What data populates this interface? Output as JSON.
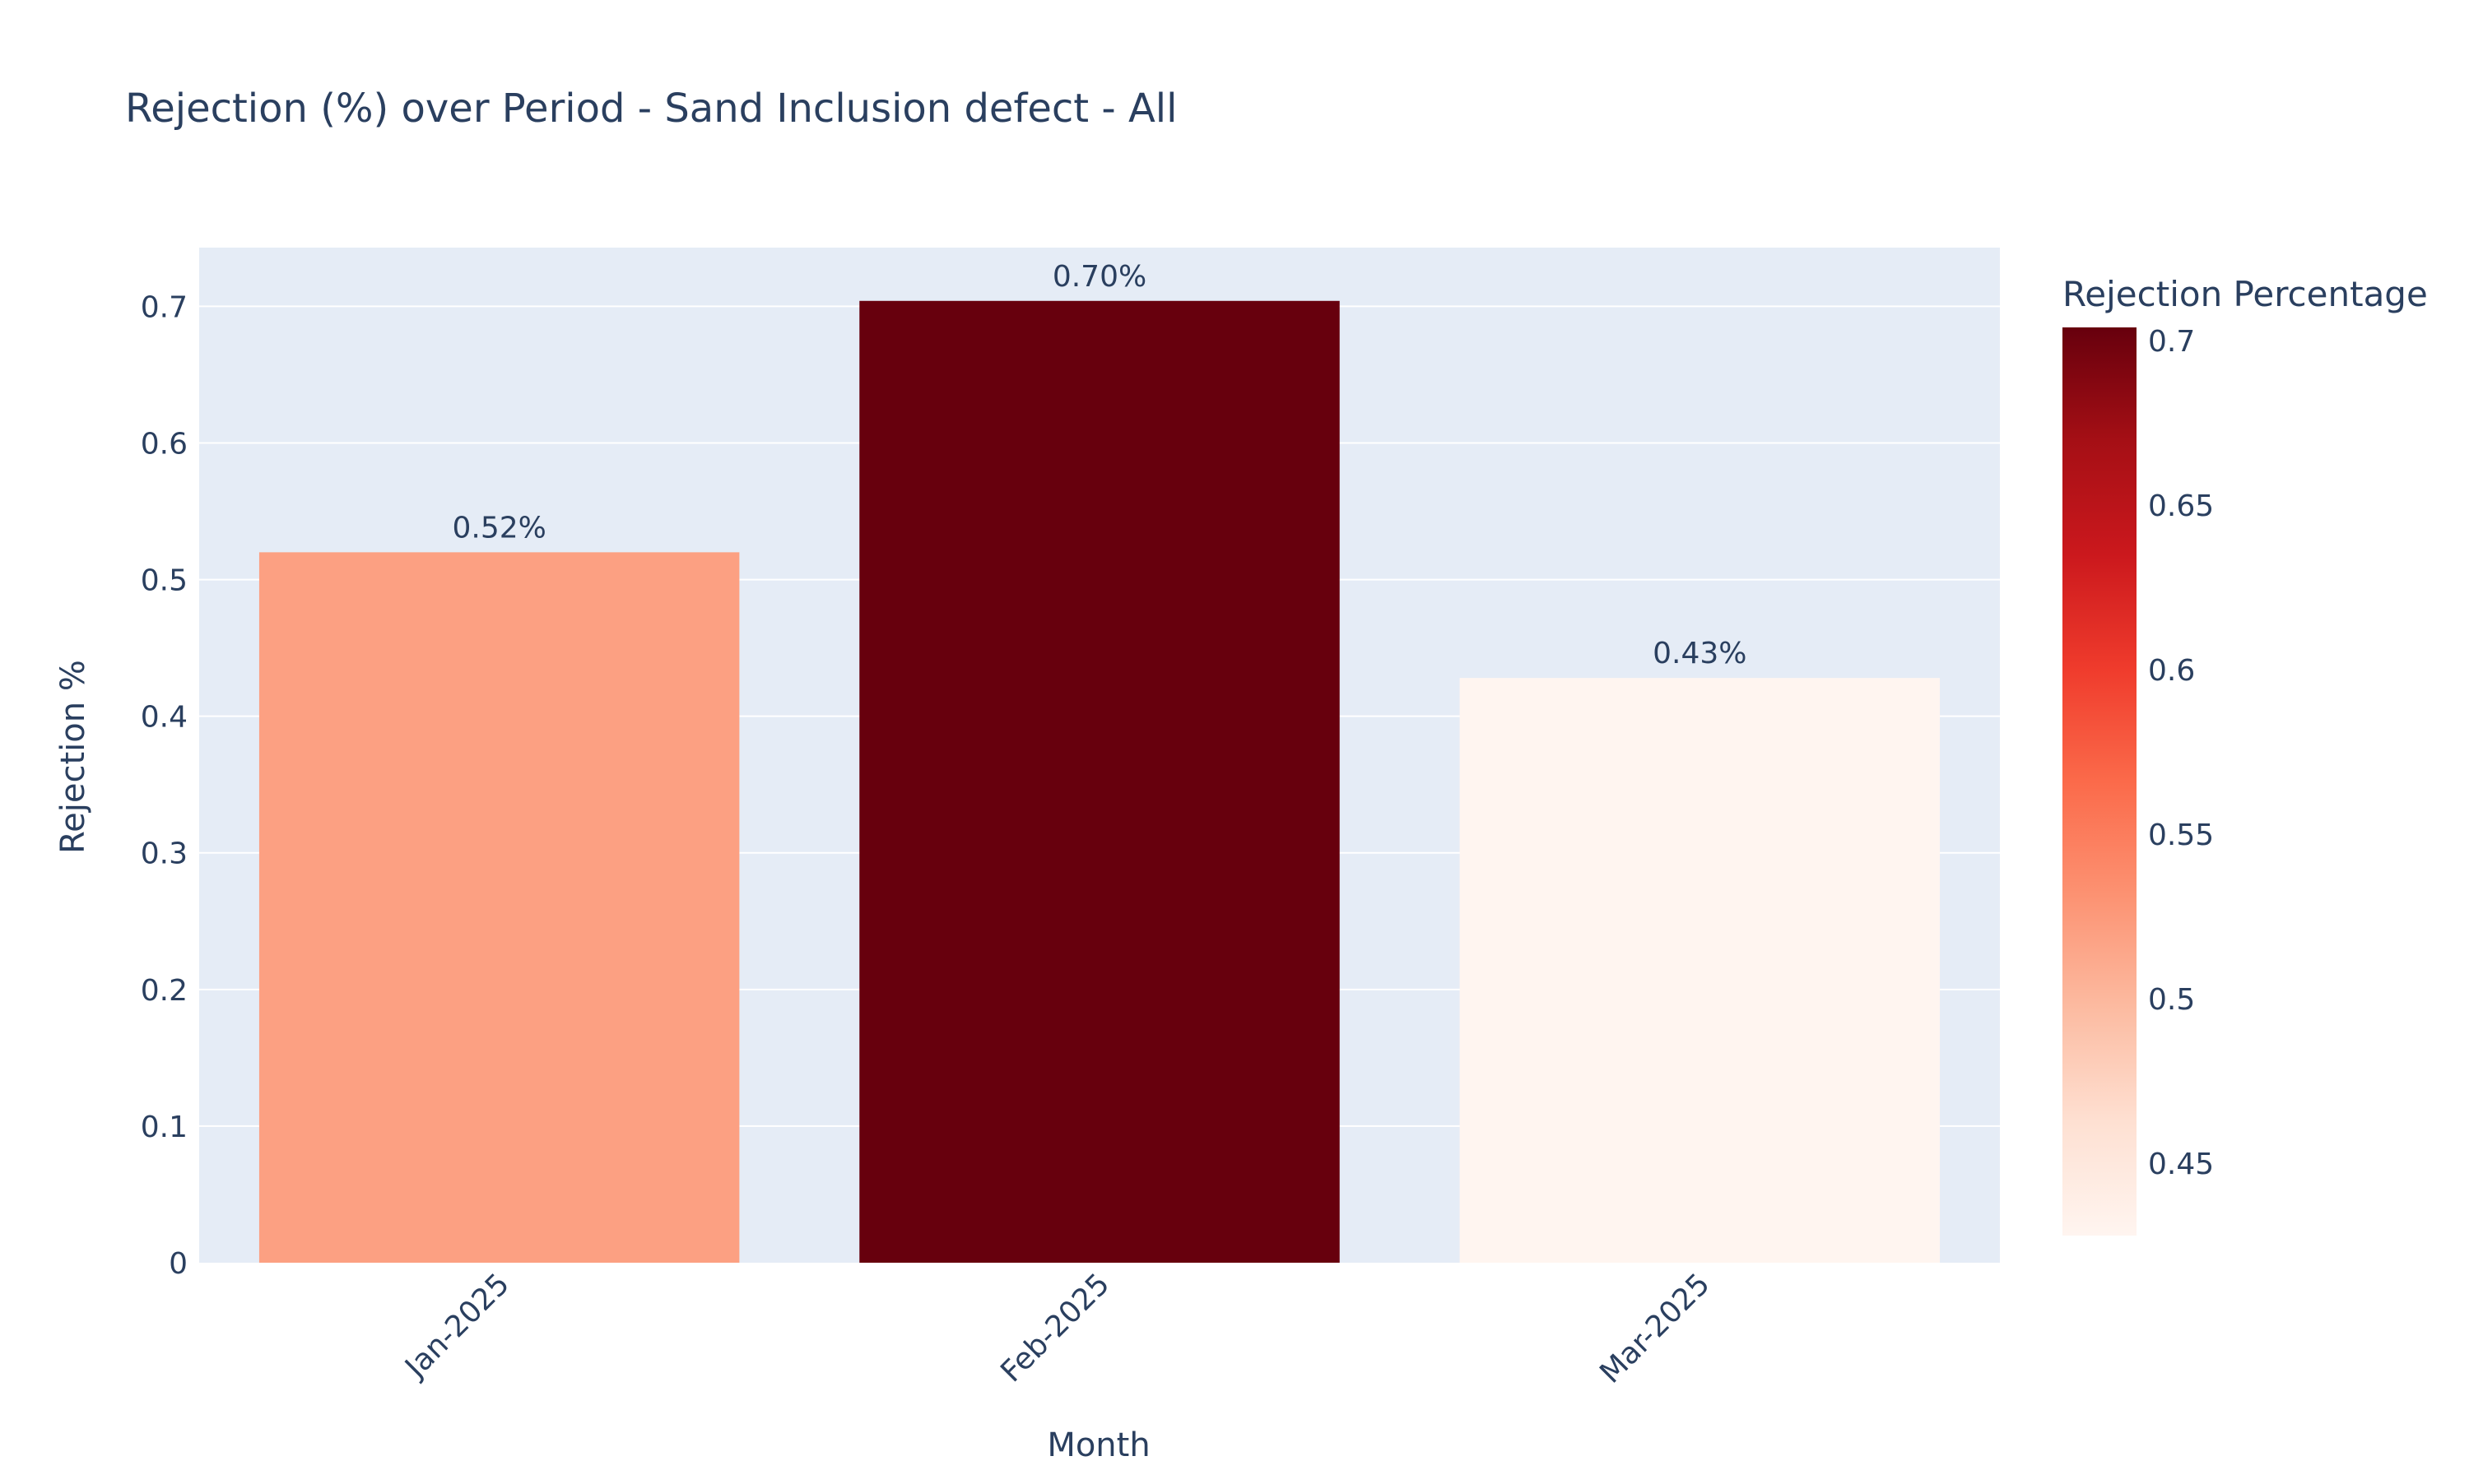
{
  "chart_data": {
    "type": "bar",
    "title": "Rejection (%) over Period - Sand Inclusion defect - All",
    "xlabel": "Month",
    "ylabel": "Rejection %",
    "categories": [
      "Jan-2025",
      "Feb-2025",
      "Mar-2025"
    ],
    "values": [
      0.52,
      0.704,
      0.428
    ],
    "data_labels": [
      "0.52%",
      "0.70%",
      "0.43%"
    ],
    "ylim": [
      0,
      0.743
    ],
    "y_ticks": [
      0,
      0.1,
      0.2,
      0.3,
      0.4,
      0.5,
      0.6,
      0.7
    ],
    "y_tick_labels": [
      "0",
      "0.1",
      "0.2",
      "0.3",
      "0.4",
      "0.5",
      "0.6",
      "0.7"
    ],
    "grid": true,
    "colorscale": {
      "name": "Reds",
      "title": "Rejection Percentage",
      "min": 0.428,
      "max": 0.704,
      "ticks": [
        0.45,
        0.5,
        0.55,
        0.6,
        0.65,
        0.7
      ],
      "tick_labels": [
        "0.45",
        "0.5",
        "0.55",
        "0.6",
        "0.65",
        "0.7"
      ],
      "colors": [
        "#fff5f0",
        "#fee0d2",
        "#fcbba1",
        "#fc9272",
        "#fb6a4a",
        "#ef3b2c",
        "#cb181d",
        "#a50f15",
        "#67000d"
      ]
    },
    "colors": {
      "plot_background": "#e5ecf6",
      "grid": "#ffffff",
      "text": "#2a3f5f"
    }
  }
}
